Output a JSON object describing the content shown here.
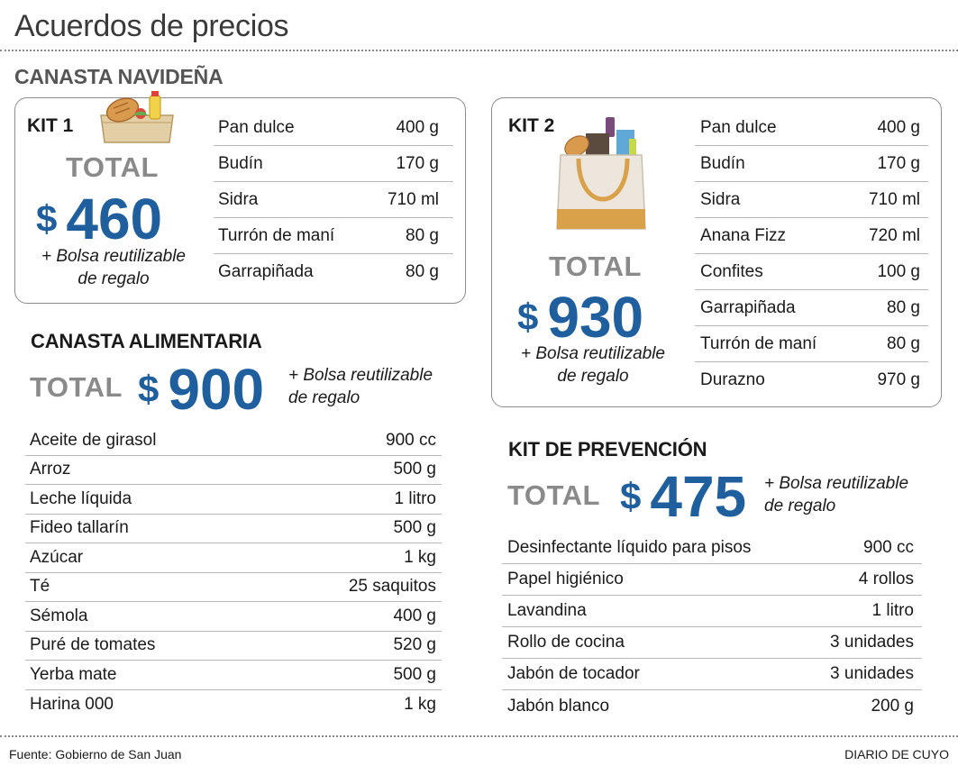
{
  "title": "Acuerdos de precios",
  "navidena": {
    "heading": "CANASTA NAVIDEÑA",
    "kit1": {
      "label": "KIT 1",
      "total_word": "TOTAL",
      "currency": "$",
      "price": "460",
      "bonus_line1": "+ Bolsa reutilizable",
      "bonus_line2": "de regalo",
      "items": [
        {
          "name": "Pan dulce",
          "qty": "400 g"
        },
        {
          "name": "Budín",
          "qty": "170 g"
        },
        {
          "name": "Sidra",
          "qty": "710 ml"
        },
        {
          "name": "Turrón de maní",
          "qty": "80 g"
        },
        {
          "name": "Garrapiñada",
          "qty": "80 g"
        }
      ]
    },
    "kit2": {
      "label": "KIT 2",
      "total_word": "TOTAL",
      "currency": "$",
      "price": "930",
      "bonus_line1": "+ Bolsa reutilizable",
      "bonus_line2": "de regalo",
      "items": [
        {
          "name": "Pan dulce",
          "qty": "400 g"
        },
        {
          "name": "Budín",
          "qty": "170 g"
        },
        {
          "name": "Sidra",
          "qty": "710 ml"
        },
        {
          "name": "Anana Fizz",
          "qty": "720 ml"
        },
        {
          "name": "Confites",
          "qty": "100 g"
        },
        {
          "name": "Garrapiñada",
          "qty": "80 g"
        },
        {
          "name": "Turrón de maní",
          "qty": "80 g"
        },
        {
          "name": "Durazno",
          "qty": "970 g"
        }
      ]
    }
  },
  "alimentaria": {
    "heading": "CANASTA ALIMENTARIA",
    "total_word": "TOTAL",
    "currency": "$",
    "price": "900",
    "bonus_line1": "+ Bolsa reutilizable",
    "bonus_line2": "de regalo",
    "items": [
      {
        "name": "Aceite de girasol",
        "qty": "900 cc"
      },
      {
        "name": "Arroz",
        "qty": "500 g"
      },
      {
        "name": "Leche líquida",
        "qty": "1 litro"
      },
      {
        "name": "Fideo tallarín",
        "qty": "500 g"
      },
      {
        "name": "Azúcar",
        "qty": "1 kg"
      },
      {
        "name": "Té",
        "qty": "25 saquitos"
      },
      {
        "name": "Sémola",
        "qty": "400 g"
      },
      {
        "name": "Puré de tomates",
        "qty": "520 g"
      },
      {
        "name": "Yerba mate",
        "qty": "500 g"
      },
      {
        "name": "Harina 000",
        "qty": "1 kg"
      }
    ]
  },
  "prevencion": {
    "heading": "KIT DE PREVENCIÓN",
    "total_word": "TOTAL",
    "currency": "$",
    "price": "475",
    "bonus_line1": "+ Bolsa reutilizable",
    "bonus_line2": "de regalo",
    "items": [
      {
        "name": "Desinfectante líquido para pisos",
        "qty": "900 cc"
      },
      {
        "name": "Papel higiénico",
        "qty": "4 rollos"
      },
      {
        "name": "Lavandina",
        "qty": "1 litro"
      },
      {
        "name": "Rollo de cocina",
        "qty": "3 unidades"
      },
      {
        "name": "Jabón de tocador",
        "qty": "3 unidades"
      },
      {
        "name": "Jabón blanco",
        "qty": "200 g"
      }
    ]
  },
  "footer": {
    "source": "Fuente: Gobierno de San Juan",
    "brand": "DIARIO DE CUYO"
  },
  "icons": {
    "kit1_image": "bread-basket-icon",
    "kit2_image": "grocery-tote-bag-icon"
  },
  "colors": {
    "price_blue": "#1f5f9e",
    "total_gray": "#8a8a8a",
    "heading_gray": "#555555"
  }
}
